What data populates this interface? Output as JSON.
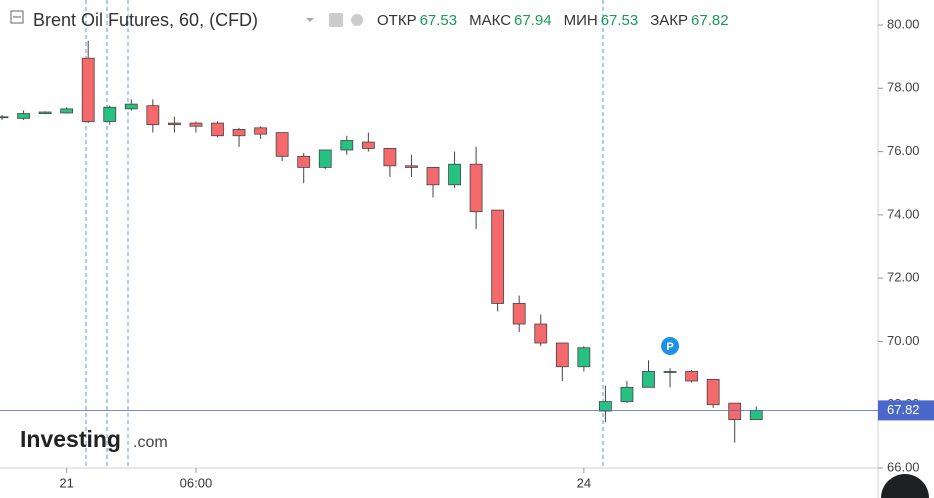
{
  "chart_data": {
    "type": "candlestick",
    "title": "Brent Oil Futures, 60, (CFD)",
    "ohlc_labels": [
      "ОТКР",
      "МАКС",
      "МИН",
      "ЗАКР"
    ],
    "watermark": [
      "Investing",
      ".com"
    ],
    "annotation": {
      "text": "P",
      "index": 31
    },
    "categories": [
      null,
      null,
      null,
      "21",
      null,
      null,
      null,
      null,
      null,
      "06:00",
      null,
      null,
      null,
      null,
      null,
      null,
      null,
      null,
      null,
      null,
      null,
      null,
      null,
      null,
      null,
      null,
      null,
      "24",
      null,
      null,
      null,
      null,
      null,
      null,
      null,
      null
    ],
    "open": [
      77.1,
      77.05,
      77.2,
      77.22,
      78.95,
      76.95,
      77.35,
      77.45,
      76.9,
      76.9,
      76.9,
      76.7,
      76.75,
      76.6,
      75.85,
      75.5,
      76.05,
      76.3,
      76.1,
      75.55,
      75.5,
      74.95,
      75.6,
      74.15,
      71.2,
      70.55,
      69.95,
      69.2,
      67.8,
      68.1,
      68.55,
      69.05,
      69.05,
      68.8,
      68.05,
      67.53
    ],
    "high": [
      77.15,
      77.3,
      77.27,
      77.4,
      79.5,
      77.45,
      77.65,
      77.65,
      77.1,
      76.95,
      76.95,
      76.75,
      76.8,
      76.6,
      75.95,
      76.05,
      76.5,
      76.6,
      76.1,
      75.9,
      75.5,
      76.0,
      76.15,
      74.15,
      71.45,
      70.85,
      69.95,
      69.85,
      68.6,
      68.75,
      69.4,
      69.15,
      69.1,
      68.8,
      68.05,
      67.94
    ],
    "low": [
      77.0,
      77.0,
      77.18,
      77.2,
      76.9,
      76.85,
      77.3,
      76.6,
      76.6,
      76.6,
      76.45,
      76.15,
      76.4,
      75.7,
      75.0,
      75.45,
      75.9,
      76.0,
      75.2,
      75.2,
      74.55,
      74.85,
      73.55,
      70.95,
      70.3,
      69.85,
      68.75,
      69.05,
      67.45,
      68.05,
      68.55,
      68.55,
      68.7,
      67.9,
      66.8,
      67.53
    ],
    "close": [
      77.1,
      77.2,
      77.25,
      77.35,
      76.95,
      77.4,
      77.5,
      76.85,
      76.85,
      76.8,
      76.5,
      76.5,
      76.55,
      75.85,
      75.5,
      76.05,
      76.35,
      76.1,
      75.55,
      75.5,
      74.95,
      75.6,
      74.1,
      71.2,
      70.55,
      69.95,
      69.2,
      69.8,
      68.1,
      68.55,
      69.05,
      69.05,
      68.75,
      68.0,
      67.53,
      67.82
    ],
    "up_color": "#26c281",
    "down_color": "#f4696b",
    "ylim": [
      66.0,
      80.79
    ],
    "yticks": [
      {
        "value": 66,
        "label": "66.00"
      },
      {
        "value": 68,
        "label": "68.00"
      },
      {
        "value": 70,
        "label": "70.00"
      },
      {
        "value": 72,
        "label": "72.00"
      },
      {
        "value": 74,
        "label": "74.00"
      },
      {
        "value": 76,
        "label": "76.00"
      },
      {
        "value": 78,
        "label": "78.00"
      },
      {
        "value": 80,
        "label": "80.00"
      }
    ]
  }
}
